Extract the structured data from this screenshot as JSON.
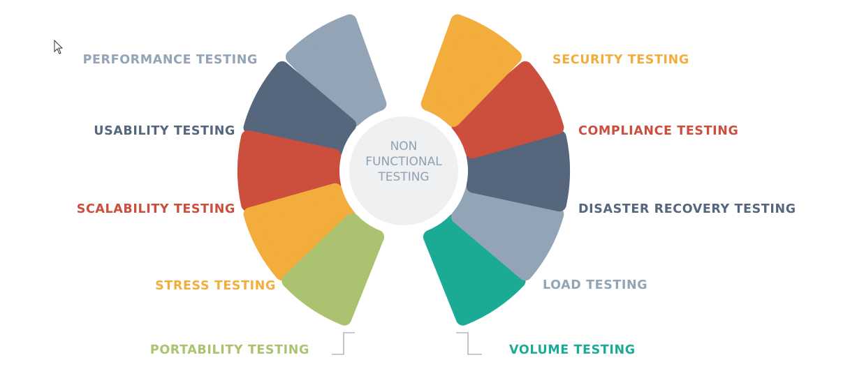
{
  "center": {
    "line1": "NON",
    "line2": "FUNCTIONAL",
    "line3": "TESTING"
  },
  "colors": {
    "slate_light": "#93a4b6",
    "slate_dark": "#55667d",
    "red": "#cc4e3d",
    "orange": "#f3ad3d",
    "green": "#abc370",
    "teal": "#1bab95",
    "hub": "#eef0f1",
    "connector": "#b4b8bd"
  },
  "segments": [
    {
      "id": "performance",
      "label": "PERFORMANCE TESTING",
      "color": "#93a4b6"
    },
    {
      "id": "usability",
      "label": "USABILITY TESTING",
      "color": "#55667d"
    },
    {
      "id": "scalability",
      "label": "SCALABILITY TESTING",
      "color": "#cc4e3d"
    },
    {
      "id": "stress",
      "label": "STRESS TESTING",
      "color": "#f3ad3d"
    },
    {
      "id": "portability",
      "label": "PORTABILITY TESTING",
      "color": "#abc370"
    },
    {
      "id": "volume",
      "label": "VOLUME TESTING",
      "color": "#1bab95"
    },
    {
      "id": "load",
      "label": "LOAD TESTING",
      "color": "#93a4b6"
    },
    {
      "id": "disaster",
      "label": "DISASTER RECOVERY TESTING",
      "color": "#55667d"
    },
    {
      "id": "compliance",
      "label": "COMPLIANCE TESTING",
      "color": "#cc4e3d"
    },
    {
      "id": "security",
      "label": "SECURITY TESTING",
      "color": "#f3ad3d"
    }
  ],
  "cursor_icon": "arrow-cursor-icon"
}
